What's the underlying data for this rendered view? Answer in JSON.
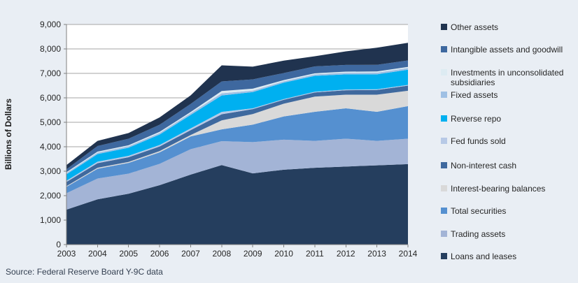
{
  "source_note": "Source: Federal Reserve Board Y-9C data",
  "colors": {
    "background": "#E9EEF4",
    "plot_background": "#FFFFFF",
    "gridline": "#A6A6A6",
    "axis_line": "#808080",
    "tick_text": "#262626",
    "axis_title_text": "#1A1A1A",
    "source_text": "#333F50"
  },
  "chart_data": {
    "type": "area",
    "stacked": true,
    "title": "",
    "xlabel": "",
    "ylabel": "Billions of Dollars",
    "x": [
      2003,
      2004,
      2005,
      2006,
      2007,
      2008,
      2009,
      2010,
      2011,
      2012,
      2013,
      2014
    ],
    "ylim": [
      0,
      9000
    ],
    "ytick_step": 1000,
    "ytick_labels": [
      "0",
      "1,000",
      "2,000",
      "3,000",
      "4,000",
      "5,000",
      "6,000",
      "7,000",
      "8,000",
      "9,000"
    ],
    "grid": true,
    "legend_position": "right",
    "legend_order": "top of legend = top of stack",
    "series": [
      {
        "name": "Loans and leases",
        "color": "#253E5E",
        "values": [
          1430,
          1850,
          2080,
          2430,
          2860,
          3250,
          2910,
          3060,
          3140,
          3190,
          3240,
          3290
        ]
      },
      {
        "name": "Trading assets",
        "color": "#A3B4D6",
        "values": [
          670,
          850,
          820,
          870,
          1040,
          980,
          1280,
          1230,
          1100,
          1140,
          1000,
          1040
        ]
      },
      {
        "name": "Total securities",
        "color": "#5590D0",
        "values": [
          260,
          400,
          440,
          470,
          520,
          480,
          715,
          950,
          1190,
          1240,
          1190,
          1330
        ]
      },
      {
        "name": "Interest-bearing balances",
        "color": "#D9D9D9",
        "values": [
          30,
          40,
          40,
          50,
          60,
          370,
          430,
          520,
          620,
          560,
          700,
          630
        ]
      },
      {
        "name": "Non-interest cash",
        "color": "#3F699E",
        "values": [
          170,
          190,
          190,
          190,
          200,
          250,
          205,
          160,
          170,
          180,
          190,
          210
        ]
      },
      {
        "name": "Fed funds sold",
        "color": "#B7C9E6",
        "values": [
          50,
          60,
          60,
          60,
          70,
          95,
          30,
          30,
          30,
          30,
          30,
          30
        ]
      },
      {
        "name": "Reverse repo",
        "color": "#00B0F0",
        "values": [
          260,
          310,
          330,
          430,
          550,
          670,
          665,
          670,
          650,
          620,
          610,
          620
        ]
      },
      {
        "name": "Fixed assets",
        "color": "#9FC0E4",
        "values": [
          55,
          60,
          60,
          65,
          70,
          90,
          60,
          60,
          60,
          65,
          70,
          70
        ]
      },
      {
        "name": "Investments in unconsolidated subsidiaries",
        "color": "#DDEBF2",
        "values": [
          35,
          40,
          40,
          45,
          50,
          95,
          80,
          45,
          45,
          45,
          50,
          45
        ]
      },
      {
        "name": "Intangible assets and goodwill",
        "color": "#3E689F",
        "values": [
          120,
          230,
          270,
          290,
          330,
          390,
          380,
          290,
          280,
          275,
          270,
          265
        ]
      },
      {
        "name": "Other assets",
        "color": "#20334F",
        "values": [
          170,
          210,
          230,
          300,
          350,
          660,
          520,
          505,
          415,
          555,
          700,
          720
        ]
      }
    ],
    "stack_totals": [
      3250,
      4240,
      4560,
      5200,
      6100,
      7330,
      7275,
      7520,
      7700,
      7900,
      8050,
      8250
    ]
  }
}
